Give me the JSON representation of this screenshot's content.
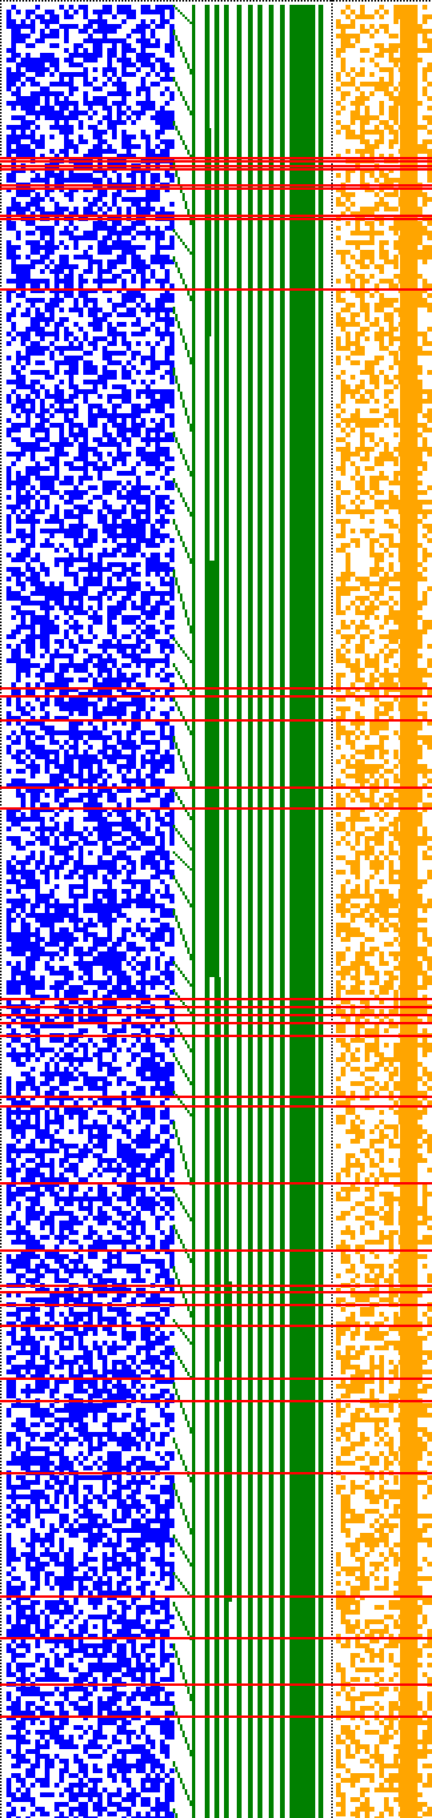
{
  "colors": {
    "background": "#ffffff",
    "left_noise": "#0000ff",
    "middle_bars": "#008000",
    "right_noise": "#ffa500",
    "highlight_rows": "#ff0000",
    "separator": "#000000"
  },
  "regions": [
    "left-noise-panel",
    "middle-bar-panel",
    "right-noise-panel"
  ],
  "highlighted_row_count": 34
}
